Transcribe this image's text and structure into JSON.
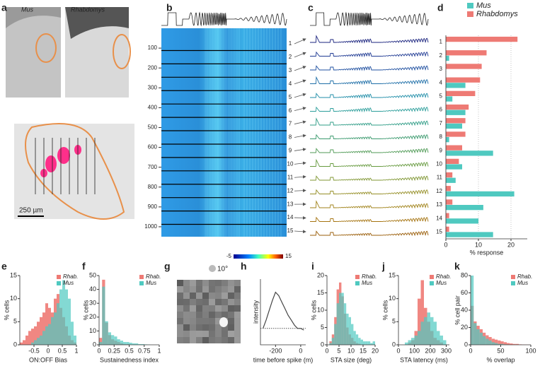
{
  "figure": {
    "panel_labels": [
      "a",
      "b",
      "c",
      "d",
      "e",
      "f",
      "g",
      "h",
      "i",
      "j",
      "k"
    ],
    "panel_a": {
      "species": [
        "Mus",
        "Rhabdomys"
      ],
      "scale_bar": "250 µm"
    },
    "panel_b": {
      "ylim": [
        0,
        1050
      ],
      "yticks": [
        100,
        200,
        300,
        400,
        500,
        600,
        700,
        800,
        900,
        1000
      ],
      "clusters": [
        "1",
        "2",
        "3",
        "4",
        "5",
        "6",
        "7",
        "8",
        "9",
        "10",
        "11",
        "12",
        "13",
        "14",
        "15"
      ],
      "colorbar_lim": [
        -5,
        15
      ],
      "colorbar_ticks": [
        -5,
        15
      ]
    },
    "panel_g": {
      "scale": "10°"
    }
  },
  "chart_data": [
    {
      "type": "hbar",
      "xlabel": "% response",
      "categories": [
        "1",
        "2",
        "3",
        "4",
        "5",
        "6",
        "7",
        "8",
        "9",
        "10",
        "11",
        "12",
        "13",
        "14",
        "15"
      ],
      "series": [
        {
          "name": "Mus",
          "color": "#4fc9c0",
          "values": [
            0,
            1,
            0,
            6,
            2,
            6,
            5,
            1,
            14.5,
            5,
            3,
            21,
            11.5,
            10,
            14.5
          ]
        },
        {
          "name": "Rhabdomys",
          "color": "#ee7a74",
          "values": [
            22,
            12.5,
            11,
            10.5,
            9,
            7,
            6,
            6,
            5,
            4,
            2,
            1.5,
            2,
            1,
            1
          ]
        }
      ],
      "xlim": [
        0,
        25
      ],
      "xticks": [
        0,
        10,
        20
      ],
      "grid": true
    },
    {
      "type": "histogram",
      "xlabel": "ON:OFF Bias",
      "ylabel": "% cells",
      "bins": [
        -1,
        -0.9,
        -0.8,
        -0.7,
        -0.6,
        -0.5,
        -0.4,
        -0.3,
        -0.2,
        -0.1,
        0,
        0.1,
        0.2,
        0.3,
        0.4,
        0.5,
        0.6,
        0.7,
        0.8,
        0.9,
        1
      ],
      "series": [
        {
          "name": "Rhab.",
          "color": "#ee7a74",
          "values": [
            0.5,
            1,
            2,
            3,
            3.5,
            4,
            5,
            6,
            7,
            9,
            8,
            7,
            10,
            11,
            8,
            6,
            4,
            2,
            1,
            0.5
          ]
        },
        {
          "name": "Mus",
          "color": "#4fc9c0",
          "values": [
            0,
            0,
            0,
            0,
            0.5,
            1,
            1.5,
            2,
            3,
            4,
            4.5,
            6,
            7,
            9,
            12,
            14,
            12,
            10,
            5,
            2
          ]
        }
      ],
      "xlim": [
        -1,
        1
      ],
      "xticks": [
        -0.5,
        0,
        0.5,
        1
      ],
      "ylim": [
        0,
        15
      ],
      "yticks": [
        0,
        5,
        10,
        15
      ]
    },
    {
      "type": "histogram",
      "xlabel": "Sustainedness index",
      "ylabel": "% cells",
      "bins": [
        0,
        0.05,
        0.1,
        0.15,
        0.2,
        0.25,
        0.3,
        0.35,
        0.4,
        0.45,
        0.5,
        0.55,
        0.6,
        0.65,
        0.7,
        0.75,
        0.8,
        0.85,
        0.9,
        0.95,
        1
      ],
      "series": [
        {
          "name": "Rhab.",
          "color": "#ee7a74",
          "values": [
            5,
            47,
            16,
            7,
            4,
            3,
            2,
            1,
            0.5,
            0.5,
            0,
            0,
            0,
            0,
            0,
            0,
            0,
            0,
            0,
            0
          ]
        },
        {
          "name": "Mus",
          "color": "#4fc9c0",
          "values": [
            2,
            42,
            17,
            9,
            7,
            6,
            4,
            3,
            2,
            2,
            1.5,
            1,
            1,
            0.5,
            0.5,
            0.3,
            0.2,
            0,
            0,
            0
          ]
        }
      ],
      "xlim": [
        0,
        1
      ],
      "xticks": [
        0,
        0.25,
        0.5,
        0.75,
        1
      ],
      "ylim": [
        0,
        50
      ],
      "yticks": [
        0,
        10,
        20,
        30,
        40,
        50
      ]
    },
    {
      "type": "line",
      "xlabel": "time before spike (m)",
      "ylabel": "intensity",
      "x": [
        -300,
        -275,
        -250,
        -225,
        -200,
        -175,
        -150,
        -125,
        -100,
        -75,
        -50,
        -25,
        0,
        25
      ],
      "series": [
        {
          "color": "#444",
          "values": [
            0.5,
            0.55,
            0.61,
            0.67,
            0.72,
            0.7,
            0.66,
            0.62,
            0.58,
            0.55,
            0.52,
            0.5,
            0.5,
            0.49
          ]
        }
      ],
      "reference_line": 0.5,
      "xlim": [
        -320,
        40
      ],
      "xticks": [
        -200,
        0
      ],
      "ylim": [
        0.4,
        0.8
      ]
    },
    {
      "type": "histogram",
      "xlabel": "STA size (deg)",
      "ylabel": "% cells",
      "bins": [
        0,
        1,
        2,
        3,
        4,
        5,
        6,
        7,
        8,
        9,
        10,
        11,
        12,
        13,
        14,
        15,
        16,
        17,
        18,
        19,
        20
      ],
      "series": [
        {
          "name": "Rhab.",
          "color": "#ee7a74",
          "values": [
            0,
            1,
            3,
            8,
            16,
            18,
            14,
            9,
            5,
            3,
            2,
            1,
            0.5,
            0.3,
            0,
            0,
            0,
            0,
            0,
            0
          ]
        },
        {
          "name": "Mus",
          "color": "#4fc9c0",
          "values": [
            0,
            0.5,
            2,
            6,
            12,
            15,
            15,
            12,
            9,
            8,
            6,
            4,
            3,
            2,
            1.5,
            1,
            1,
            1,
            0.5,
            1
          ]
        }
      ],
      "xlim": [
        0,
        20
      ],
      "xticks": [
        0,
        5,
        10,
        15,
        20
      ],
      "ylim": [
        0,
        20
      ],
      "yticks": [
        0,
        5,
        10,
        15,
        20
      ]
    },
    {
      "type": "histogram",
      "xlabel": "STA latency (ms)",
      "ylabel": "% cells",
      "bins": [
        0,
        20,
        40,
        60,
        80,
        100,
        120,
        140,
        160,
        180,
        200,
        220,
        240,
        260,
        280,
        300
      ],
      "series": [
        {
          "name": "Rhab.",
          "color": "#ee7a74",
          "values": [
            0,
            0,
            0,
            0.5,
            1,
            3,
            10,
            14,
            8,
            5,
            3,
            1.5,
            1,
            0.5,
            0
          ]
        },
        {
          "name": "Mus",
          "color": "#4fc9c0",
          "values": [
            0,
            0,
            0.5,
            1,
            1.5,
            2,
            3,
            5,
            6,
            7,
            6,
            5,
            3,
            2,
            1
          ]
        }
      ],
      "xlim": [
        0,
        320
      ],
      "xticks": [
        0,
        100,
        200,
        300
      ],
      "ylim": [
        0,
        15
      ],
      "yticks": [
        0,
        5,
        10,
        15
      ]
    },
    {
      "type": "histogram",
      "xlabel": "% overlap",
      "ylabel": "% cell pair",
      "bins": [
        0,
        5,
        10,
        15,
        20,
        25,
        30,
        35,
        40,
        45,
        50,
        55,
        60,
        65,
        70,
        75,
        80,
        85,
        90,
        95,
        100
      ],
      "series": [
        {
          "name": "Rhab.",
          "color": "#ee7a74",
          "values": [
            45,
            27,
            22,
            18,
            14,
            11,
            9,
            7,
            6,
            5,
            4,
            3,
            2,
            1.5,
            1,
            1,
            0.5,
            0.3,
            0.2,
            0.1
          ]
        },
        {
          "name": "Mus",
          "color": "#4fc9c0",
          "values": [
            80,
            25,
            18,
            14,
            10,
            7,
            5,
            3,
            2,
            1,
            1,
            0.5,
            0.3,
            0,
            0,
            0,
            0,
            0,
            0,
            0
          ]
        }
      ],
      "xlim": [
        0,
        100
      ],
      "xticks": [
        0,
        50,
        100
      ],
      "ylim": [
        0,
        80
      ],
      "yticks": [
        0,
        20,
        40,
        60,
        80
      ]
    }
  ]
}
